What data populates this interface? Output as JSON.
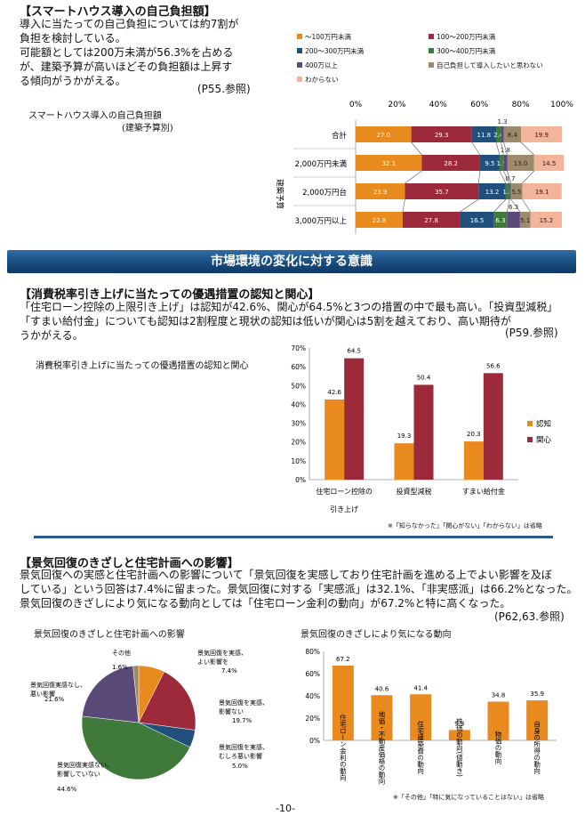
{
  "section1": {
    "heading": "【スマートハウス導入の自己負担額】",
    "lines": [
      "導入に当たっての自己負担については約7割が",
      "負担を検討している。",
      "可能額としては200万未満が56.3%を占める",
      "が、建築予算が高いほどその負担額は上昇す",
      "る傾向がうかがえる。"
    ],
    "ref": "(P55.参照)",
    "chart_title_1": "スマートハウス導入の自己負担額",
    "chart_title_2": "(建築予算別)"
  },
  "chart_data": [
    {
      "type": "bar",
      "orientation": "horizontal-stacked",
      "group_label": "建築予算",
      "categories": [
        "合計",
        "2,000万円未満",
        "2,000万円台",
        "3,000万円以上"
      ],
      "x_ticks": [
        "0%",
        "20%",
        "40%",
        "60%",
        "80%",
        "100%"
      ],
      "series": [
        {
          "name": "～100万円未満",
          "color": "#e98a1e",
          "values": [
            27.0,
            32.1,
            23.9,
            22.8
          ]
        },
        {
          "name": "100～200万円未満",
          "color": "#9c2a3a",
          "values": [
            29.3,
            28.2,
            35.7,
            27.8
          ]
        },
        {
          "name": "200～300万円未満",
          "color": "#1f4f7a",
          "values": [
            11.8,
            9.5,
            13.2,
            16.5
          ]
        },
        {
          "name": "300～400万円未満",
          "color": "#3f7a3a",
          "values": [
            2.4,
            1.9,
            1.8,
            6.3
          ]
        },
        {
          "name": "400万以上",
          "color": "#5a4a7a",
          "values": [
            1.3,
            1.8,
            0.7,
            6.3
          ]
        },
        {
          "name": "自己負担して導入したいと思わない",
          "color": "#9c8a6a",
          "values": [
            8.4,
            13.0,
            5.5,
            5.1
          ]
        },
        {
          "name": "わからない",
          "color": "#f2b49a",
          "values": [
            19.9,
            14.5,
            19.1,
            15.2
          ]
        }
      ],
      "labels": [
        [
          "27.0",
          "29.3",
          "11.8",
          "2.4",
          "1.3",
          "8.4",
          "19.9"
        ],
        [
          "32.1",
          "28.2",
          "9.5",
          "1.9",
          "1.8",
          "13.0",
          "14.5"
        ],
        [
          "23.9",
          "35.7",
          "13.2",
          "1.8",
          "0.7",
          "5.5",
          "19.1"
        ],
        [
          "22.8",
          "27.8",
          "16.5",
          "6.3",
          "6.3",
          "5.1",
          "15.2"
        ]
      ],
      "xlim": [
        0,
        100
      ]
    },
    {
      "type": "bar",
      "title": "消費税率引き上げに当たっての優遇措置の認知と関心",
      "categories": [
        "住宅ローン控除の引き上げ",
        "投資型減税",
        "すまい給付金"
      ],
      "category_lines": [
        [
          "住宅ローン控除の",
          "引き上げ"
        ],
        [
          "投資型減税"
        ],
        [
          "すまい給付金"
        ]
      ],
      "series": [
        {
          "name": "認知",
          "color": "#e98a1e",
          "values": [
            42.6,
            19.3,
            20.3
          ]
        },
        {
          "name": "関心",
          "color": "#9c2a3a",
          "values": [
            64.5,
            50.4,
            56.6
          ]
        }
      ],
      "y_ticks": [
        "0%",
        "10%",
        "20%",
        "30%",
        "40%",
        "50%",
        "60%",
        "70%"
      ],
      "ylim": [
        0,
        70
      ],
      "legend": "right",
      "note": "※「知らなかった」「関心がない」「わからない」は省略"
    },
    {
      "type": "pie",
      "title": "景気回復のきざしと住宅計画への影響",
      "slices": [
        {
          "label": "景気回復を実感、よい影響を",
          "value": 7.4,
          "value_label": "7.4%",
          "color": "#e98a1e"
        },
        {
          "label": "景気回復を実感、影響ない",
          "value": 19.7,
          "value_label": "19.7%",
          "color": "#9c2a3a"
        },
        {
          "label": "景気回復を実感、むしろ悪い影響",
          "value": 5.0,
          "value_label": "5.0%",
          "color": "#1f4f7a"
        },
        {
          "label": "景気回復実感ない、影響していない",
          "value": 44.6,
          "value_label": "44.6%",
          "color": "#3f7a3a"
        },
        {
          "label": "景気回復実感なし、悪い影響",
          "value": 21.6,
          "value_label": "21.6%",
          "color": "#5a4a7a"
        },
        {
          "label": "その他",
          "value": 1.6,
          "value_label": "1.6%",
          "color": "#9c8a6a"
        }
      ]
    },
    {
      "type": "bar",
      "title": "景気回復のきざしにより気になる動向",
      "categories": [
        "住宅ローン金利の動向",
        "地価・不動産価格の動向",
        "住宅建築費の動向",
        "株価の動向(値動き)",
        "物価の動向",
        "自身の所得の動向"
      ],
      "values": [
        67.2,
        40.6,
        41.4,
        9.3,
        34.8,
        35.9
      ],
      "value_labels": [
        "67.2",
        "40.6",
        "41.4",
        "9.3",
        "34.8",
        "35.9"
      ],
      "color": "#e98a1e",
      "y_ticks": [
        "0%",
        "20%",
        "40%",
        "60%",
        "80%"
      ],
      "ylim": [
        0,
        80
      ],
      "note": "※「その他」「特に気になっていることはない」は省略"
    }
  ],
  "banner": "市場環境の変化に対する意識",
  "section2": {
    "heading": "【消費税率引き上げに当たっての優遇措置の認知と関心】",
    "lines": [
      "「住宅ローン控除の上限引き上げ」は認知が42.6%、関心が64.5%と3つの措置の中で最も高い。「投資型減税」",
      "「すまい給付金」についても認知は2割程度と現状の認知は低いが関心は5割を越えており、高い期待が",
      "うかがえる。"
    ],
    "ref": "(P59.参照)"
  },
  "section3": {
    "heading": "【景気回復のきざしと住宅計画への影響】",
    "lines": [
      "景気回復への実感と住宅計画への影響について「景気回復を実感しており住宅計画を進める上でよい影響を及ぼ",
      "している」という回答は7.4%に留まった。景気回復に対する「実感派」は32.1%、「非実感派」は66.2%となった。",
      "景気回復のきざしにより気になる動向としては「住宅ローン金利の動向」が67.2%と特に高くなった。"
    ],
    "ref": "(P62,63.参照)"
  },
  "page_number": "-10-"
}
